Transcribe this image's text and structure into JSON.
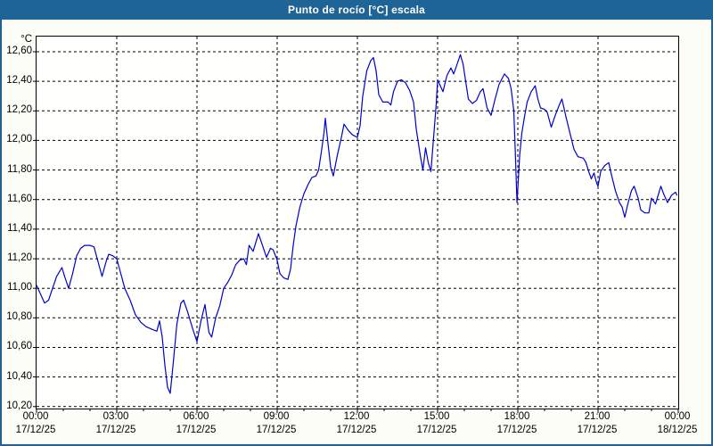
{
  "window": {
    "title": "Punto de rocío [°C] escala",
    "title_bar_color": "#1e6496",
    "border_color": "#1d6397",
    "plot_background": "#fffffd"
  },
  "chart_data": {
    "type": "line",
    "title": "Punto de rocío [°C] escala",
    "y_unit_label": "°C",
    "ylabel": "",
    "xlabel": "",
    "ylim": [
      10.2,
      12.6
    ],
    "y_tick_step": 0.2,
    "grid": "dashed-black",
    "legend_position": "none",
    "line_color": "#0000cc",
    "y_ticks": [
      {
        "label": "12,60",
        "value": 12.6
      },
      {
        "label": "12,40",
        "value": 12.4
      },
      {
        "label": "12,20",
        "value": 12.2
      },
      {
        "label": "12,00",
        "value": 12.0
      },
      {
        "label": "11,80",
        "value": 11.8
      },
      {
        "label": "11,60",
        "value": 11.6
      },
      {
        "label": "11,40",
        "value": 11.4
      },
      {
        "label": "11,20",
        "value": 11.2
      },
      {
        "label": "11,00",
        "value": 11.0
      },
      {
        "label": "10,80",
        "value": 10.8
      },
      {
        "label": "10,60",
        "value": 10.6
      },
      {
        "label": "10,40",
        "value": 10.4
      },
      {
        "label": "10,20",
        "value": 10.2
      }
    ],
    "x_ticks": [
      {
        "t": 0,
        "time": "00:00",
        "date": "17/12/25"
      },
      {
        "t": 3,
        "time": "03:00",
        "date": "17/12/25"
      },
      {
        "t": 6,
        "time": "06:00",
        "date": "17/12/25"
      },
      {
        "t": 9,
        "time": "09:00",
        "date": "17/12/25"
      },
      {
        "t": 12,
        "time": "12:00",
        "date": "17/12/25"
      },
      {
        "t": 15,
        "time": "15:00",
        "date": "17/12/25"
      },
      {
        "t": 18,
        "time": "18:00",
        "date": "17/12/25"
      },
      {
        "t": 21,
        "time": "21:00",
        "date": "17/12/25"
      },
      {
        "t": 24,
        "time": "00:00",
        "date": "18/12/25"
      }
    ],
    "x_span_hours": 24,
    "series": [
      {
        "name": "Punto de rocío [°C]",
        "points": [
          [
            0.0,
            11.02
          ],
          [
            0.15,
            10.96
          ],
          [
            0.3,
            10.9
          ],
          [
            0.45,
            10.92
          ],
          [
            0.6,
            11.0
          ],
          [
            0.75,
            11.08
          ],
          [
            0.95,
            11.14
          ],
          [
            1.05,
            11.08
          ],
          [
            1.2,
            11.0
          ],
          [
            1.35,
            11.1
          ],
          [
            1.5,
            11.22
          ],
          [
            1.65,
            11.27
          ],
          [
            1.8,
            11.29
          ],
          [
            2.0,
            11.29
          ],
          [
            2.15,
            11.28
          ],
          [
            2.3,
            11.18
          ],
          [
            2.45,
            11.08
          ],
          [
            2.6,
            11.18
          ],
          [
            2.7,
            11.23
          ],
          [
            2.85,
            11.22
          ],
          [
            3.0,
            11.2
          ],
          [
            3.15,
            11.1
          ],
          [
            3.3,
            11.0
          ],
          [
            3.5,
            10.92
          ],
          [
            3.7,
            10.82
          ],
          [
            3.9,
            10.77
          ],
          [
            4.1,
            10.74
          ],
          [
            4.35,
            10.72
          ],
          [
            4.5,
            10.71
          ],
          [
            4.6,
            10.78
          ],
          [
            4.7,
            10.67
          ],
          [
            4.8,
            10.48
          ],
          [
            4.9,
            10.33
          ],
          [
            5.0,
            10.29
          ],
          [
            5.1,
            10.47
          ],
          [
            5.25,
            10.76
          ],
          [
            5.4,
            10.9
          ],
          [
            5.5,
            10.92
          ],
          [
            5.65,
            10.84
          ],
          [
            5.85,
            10.72
          ],
          [
            6.0,
            10.64
          ],
          [
            6.15,
            10.78
          ],
          [
            6.3,
            10.89
          ],
          [
            6.45,
            10.7
          ],
          [
            6.55,
            10.67
          ],
          [
            6.7,
            10.8
          ],
          [
            6.85,
            10.88
          ],
          [
            7.0,
            11.0
          ],
          [
            7.15,
            11.04
          ],
          [
            7.3,
            11.09
          ],
          [
            7.45,
            11.16
          ],
          [
            7.6,
            11.19
          ],
          [
            7.75,
            11.2
          ],
          [
            7.85,
            11.16
          ],
          [
            7.95,
            11.29
          ],
          [
            8.1,
            11.25
          ],
          [
            8.3,
            11.37
          ],
          [
            8.45,
            11.29
          ],
          [
            8.6,
            11.21
          ],
          [
            8.75,
            11.27
          ],
          [
            8.85,
            11.26
          ],
          [
            9.0,
            11.19
          ],
          [
            9.1,
            11.1
          ],
          [
            9.25,
            11.07
          ],
          [
            9.4,
            11.06
          ],
          [
            9.5,
            11.13
          ],
          [
            9.6,
            11.29
          ],
          [
            9.7,
            11.42
          ],
          [
            9.85,
            11.55
          ],
          [
            10.0,
            11.64
          ],
          [
            10.15,
            11.7
          ],
          [
            10.3,
            11.75
          ],
          [
            10.45,
            11.76
          ],
          [
            10.55,
            11.8
          ],
          [
            10.65,
            11.92
          ],
          [
            10.75,
            12.05
          ],
          [
            10.8,
            12.15
          ],
          [
            10.9,
            11.98
          ],
          [
            11.0,
            11.82
          ],
          [
            11.1,
            11.76
          ],
          [
            11.25,
            11.9
          ],
          [
            11.4,
            12.02
          ],
          [
            11.5,
            12.11
          ],
          [
            11.65,
            12.07
          ],
          [
            11.8,
            12.04
          ],
          [
            12.0,
            12.02
          ],
          [
            12.1,
            12.1
          ],
          [
            12.2,
            12.3
          ],
          [
            12.35,
            12.47
          ],
          [
            12.5,
            12.54
          ],
          [
            12.6,
            12.56
          ],
          [
            12.7,
            12.47
          ],
          [
            12.8,
            12.31
          ],
          [
            12.95,
            12.26
          ],
          [
            13.15,
            12.26
          ],
          [
            13.25,
            12.24
          ],
          [
            13.35,
            12.33
          ],
          [
            13.5,
            12.4
          ],
          [
            13.65,
            12.41
          ],
          [
            13.8,
            12.39
          ],
          [
            13.95,
            12.34
          ],
          [
            14.1,
            12.26
          ],
          [
            14.2,
            12.08
          ],
          [
            14.35,
            11.9
          ],
          [
            14.45,
            11.8
          ],
          [
            14.55,
            11.95
          ],
          [
            14.65,
            11.85
          ],
          [
            14.75,
            11.79
          ],
          [
            14.85,
            12.02
          ],
          [
            14.95,
            12.25
          ],
          [
            15.0,
            12.41
          ],
          [
            15.1,
            12.37
          ],
          [
            15.2,
            12.33
          ],
          [
            15.35,
            12.44
          ],
          [
            15.5,
            12.49
          ],
          [
            15.6,
            12.45
          ],
          [
            15.7,
            12.5
          ],
          [
            15.85,
            12.58
          ],
          [
            15.95,
            12.52
          ],
          [
            16.05,
            12.4
          ],
          [
            16.15,
            12.28
          ],
          [
            16.3,
            12.25
          ],
          [
            16.45,
            12.27
          ],
          [
            16.6,
            12.33
          ],
          [
            16.7,
            12.35
          ],
          [
            16.85,
            12.22
          ],
          [
            17.0,
            12.17
          ],
          [
            17.15,
            12.28
          ],
          [
            17.3,
            12.38
          ],
          [
            17.5,
            12.45
          ],
          [
            17.65,
            12.42
          ],
          [
            17.75,
            12.35
          ],
          [
            17.85,
            12.2
          ],
          [
            17.9,
            11.95
          ],
          [
            17.97,
            11.58
          ],
          [
            18.07,
            11.9
          ],
          [
            18.15,
            12.05
          ],
          [
            18.25,
            12.16
          ],
          [
            18.35,
            12.26
          ],
          [
            18.5,
            12.33
          ],
          [
            18.65,
            12.37
          ],
          [
            18.75,
            12.28
          ],
          [
            18.85,
            12.22
          ],
          [
            19.0,
            12.21
          ],
          [
            19.1,
            12.19
          ],
          [
            19.25,
            12.09
          ],
          [
            19.4,
            12.17
          ],
          [
            19.55,
            12.24
          ],
          [
            19.65,
            12.28
          ],
          [
            19.8,
            12.16
          ],
          [
            19.95,
            12.05
          ],
          [
            20.1,
            11.94
          ],
          [
            20.25,
            11.89
          ],
          [
            20.45,
            11.88
          ],
          [
            20.55,
            11.85
          ],
          [
            20.65,
            11.79
          ],
          [
            20.75,
            11.74
          ],
          [
            20.85,
            11.78
          ],
          [
            20.95,
            11.71
          ],
          [
            21.0,
            11.69
          ],
          [
            21.1,
            11.79
          ],
          [
            21.25,
            11.83
          ],
          [
            21.4,
            11.85
          ],
          [
            21.5,
            11.77
          ],
          [
            21.65,
            11.66
          ],
          [
            21.8,
            11.58
          ],
          [
            21.9,
            11.55
          ],
          [
            22.0,
            11.48
          ],
          [
            22.1,
            11.56
          ],
          [
            22.25,
            11.66
          ],
          [
            22.35,
            11.69
          ],
          [
            22.5,
            11.61
          ],
          [
            22.6,
            11.53
          ],
          [
            22.75,
            11.51
          ],
          [
            22.9,
            11.51
          ],
          [
            23.0,
            11.61
          ],
          [
            23.15,
            11.57
          ],
          [
            23.35,
            11.69
          ],
          [
            23.45,
            11.64
          ],
          [
            23.6,
            11.58
          ],
          [
            23.75,
            11.63
          ],
          [
            23.9,
            11.65
          ],
          [
            23.95,
            11.63
          ]
        ]
      }
    ]
  }
}
